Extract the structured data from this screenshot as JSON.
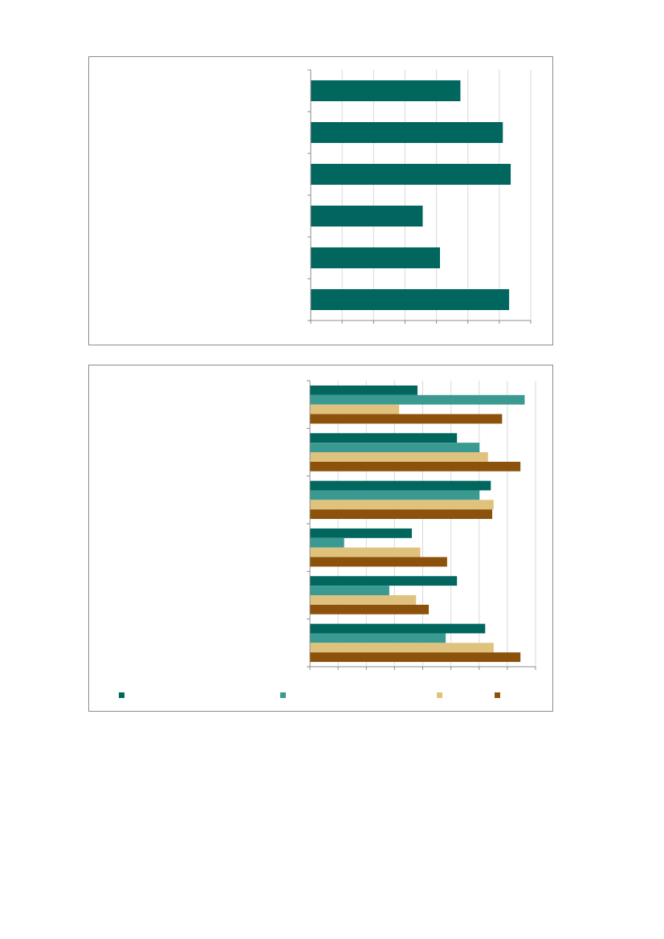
{
  "colors": {
    "axis": "#8c8c8c",
    "grid": "#d9d9d9",
    "series_colors": [
      "#00665e",
      "#3a9a92",
      "#dfc27d",
      "#8c510a"
    ]
  },
  "chart_data": [
    {
      "type": "bar",
      "orientation": "horizontal",
      "categories": [
        "",
        "",
        "",
        "",
        "",
        ""
      ],
      "values": [
        4.75,
        6.1,
        6.35,
        3.55,
        4.1,
        6.3
      ],
      "title": "",
      "xlabel": "",
      "ylabel": "",
      "xlim": [
        0,
        7
      ],
      "grid": true,
      "legend": "none"
    },
    {
      "type": "bar",
      "orientation": "horizontal",
      "categories": [
        "",
        "",
        "",
        "",
        "",
        ""
      ],
      "series": [
        {
          "values": [
            3.8,
            5.2,
            6.4,
            3.6,
            5.2,
            6.2
          ]
        },
        {
          "values": [
            7.6,
            6.0,
            6.0,
            1.2,
            2.8,
            4.8
          ]
        },
        {
          "values": [
            3.15,
            6.3,
            6.5,
            3.9,
            3.75,
            6.5
          ]
        },
        {
          "values": [
            6.8,
            7.45,
            6.45,
            4.85,
            4.2,
            7.45
          ]
        }
      ],
      "title": "",
      "xlabel": "",
      "ylabel": "",
      "xlim": [
        0,
        8
      ],
      "grid": true,
      "legend": "bottom"
    }
  ]
}
